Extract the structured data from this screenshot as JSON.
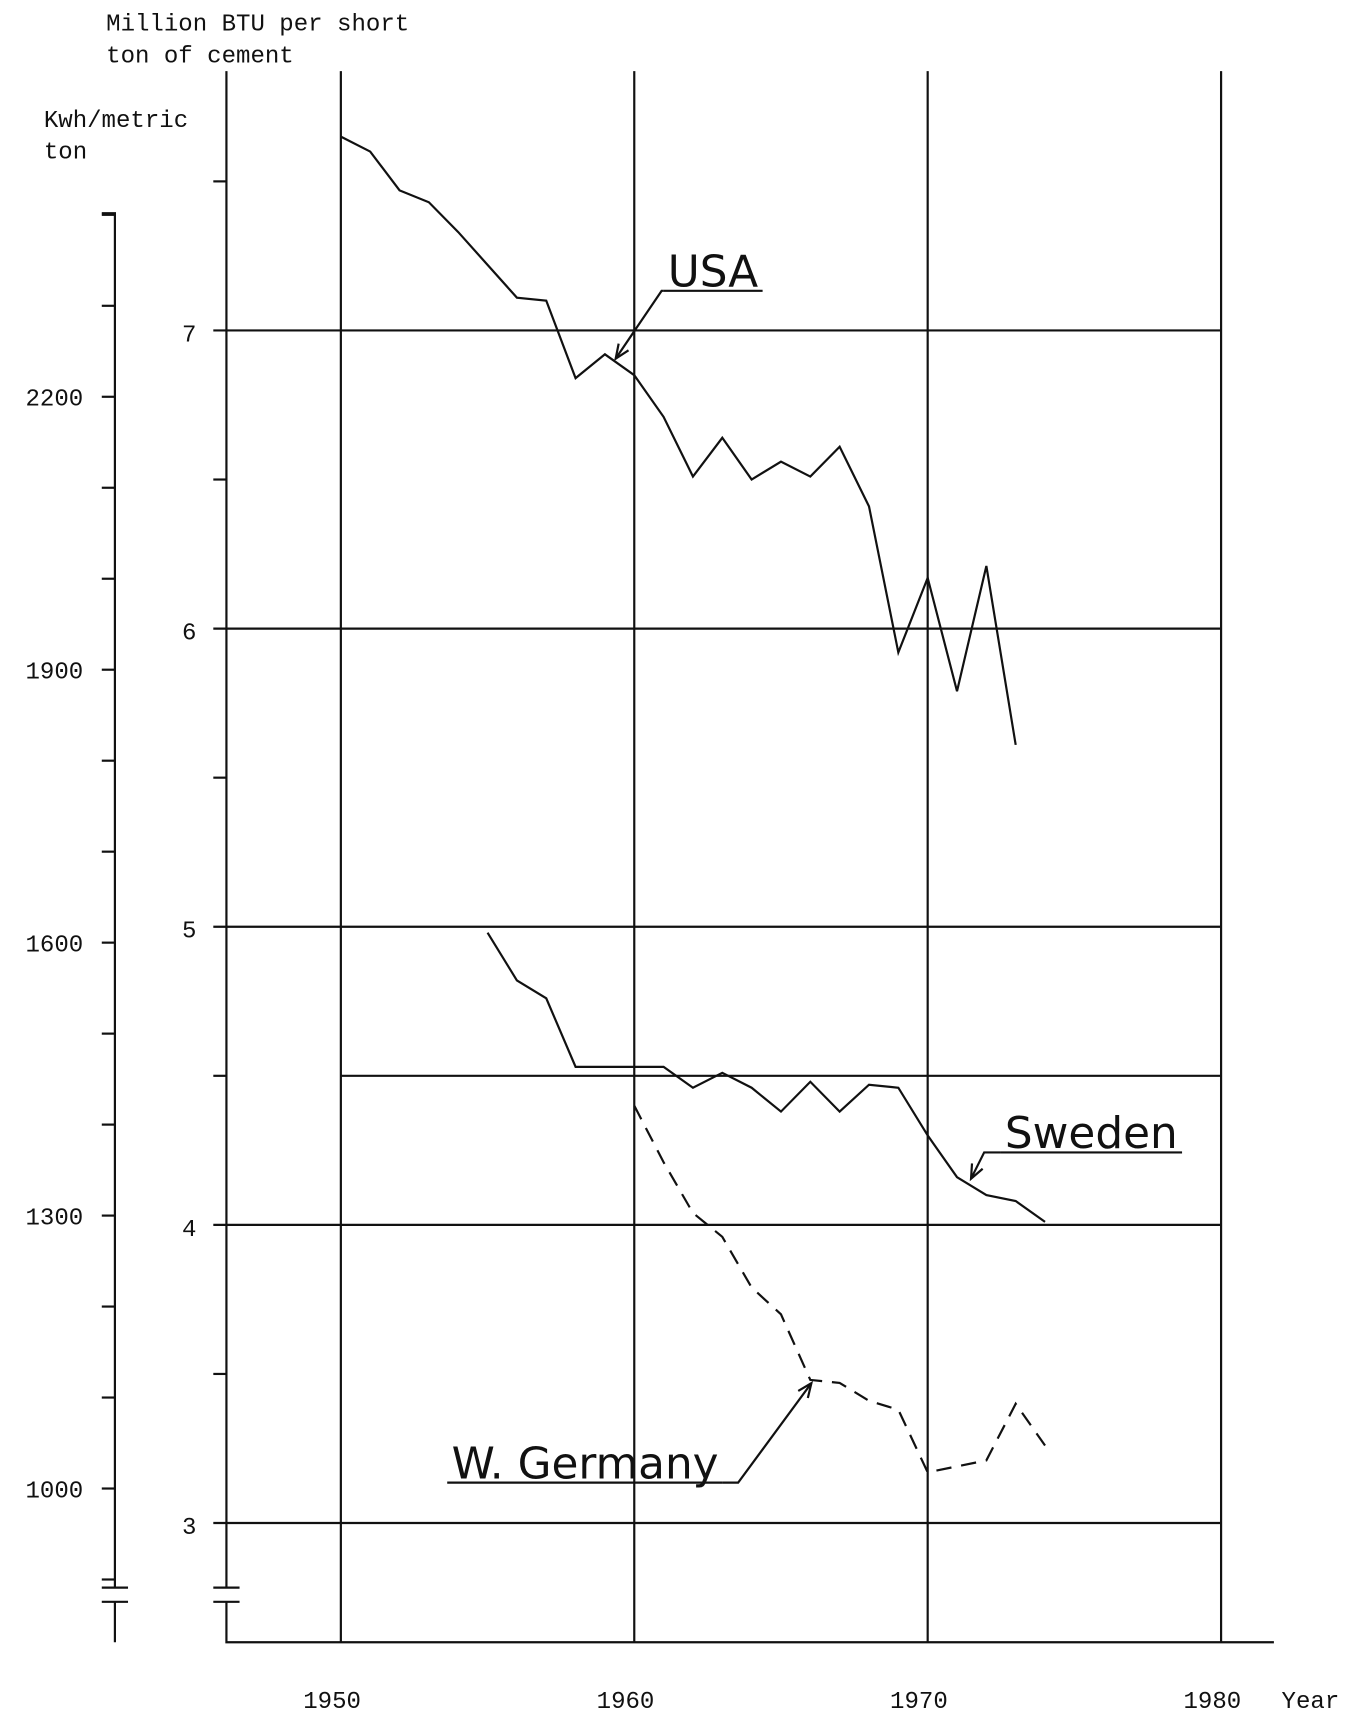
{
  "chart_data": {
    "type": "line",
    "y_label": [
      "Million BTU per short",
      "ton of cement"
    ],
    "y2_label": [
      "Kwh/metric",
      "ton"
    ],
    "x_label": "Year",
    "xlim": [
      1946.1,
      1981.8
    ],
    "xticks": [
      1950,
      1960,
      1970,
      1980
    ],
    "ylim": [
      2.6,
      7.87
    ],
    "yticks": [
      3,
      4,
      5,
      6,
      7
    ],
    "yminorticks": [
      3.5,
      4.5,
      5.5,
      6.5,
      7.5
    ],
    "y2lim": [
      831,
      2558
    ],
    "y2ticks": [
      1000,
      1300,
      1600,
      1900,
      2200
    ],
    "y2minorticks": [
      900,
      1100,
      1200,
      1400,
      1500,
      1700,
      1800,
      2000,
      2100,
      2300,
      2400
    ],
    "reference_lines": [
      4.5
    ],
    "grid": true,
    "series": [
      {
        "name": "USA",
        "color": "#111111",
        "style": "solid",
        "x": [
          1950,
          1951,
          1952,
          1953,
          1954,
          1955,
          1956,
          1957,
          1958,
          1959,
          1960,
          1961,
          1962,
          1963,
          1964,
          1965,
          1966,
          1967,
          1968,
          1969,
          1970,
          1971,
          1972,
          1973
        ],
        "values": [
          7.65,
          7.6,
          7.47,
          7.43,
          7.33,
          7.22,
          7.11,
          7.1,
          6.84,
          6.92,
          6.85,
          6.71,
          6.51,
          6.64,
          6.5,
          6.56,
          6.51,
          6.61,
          6.41,
          5.92,
          6.17,
          5.79,
          6.21,
          5.61
        ]
      },
      {
        "name": "Sweden",
        "color": "#111111",
        "style": "solid",
        "x": [
          1955,
          1956,
          1957,
          1958,
          1959,
          1960,
          1961,
          1962,
          1963,
          1964,
          1965,
          1966,
          1967,
          1968,
          1969,
          1970,
          1971,
          1972,
          1973,
          1974
        ],
        "values": [
          4.98,
          4.82,
          4.76,
          4.53,
          4.53,
          4.53,
          4.53,
          4.46,
          4.51,
          4.46,
          4.38,
          4.48,
          4.38,
          4.47,
          4.46,
          4.3,
          4.16,
          4.1,
          4.08,
          4.01
        ]
      },
      {
        "name": "W. Germany",
        "color": "#111111",
        "style": "dashed",
        "x": [
          1960,
          1961,
          1962,
          1963,
          1964,
          1965,
          1966,
          1967,
          1968,
          1969,
          1970,
          1971,
          1972,
          1973,
          1974
        ],
        "values": [
          4.4,
          4.21,
          4.04,
          3.96,
          3.79,
          3.7,
          3.48,
          3.47,
          3.41,
          3.38,
          3.17,
          3.19,
          3.21,
          3.4,
          3.26
        ]
      }
    ]
  }
}
